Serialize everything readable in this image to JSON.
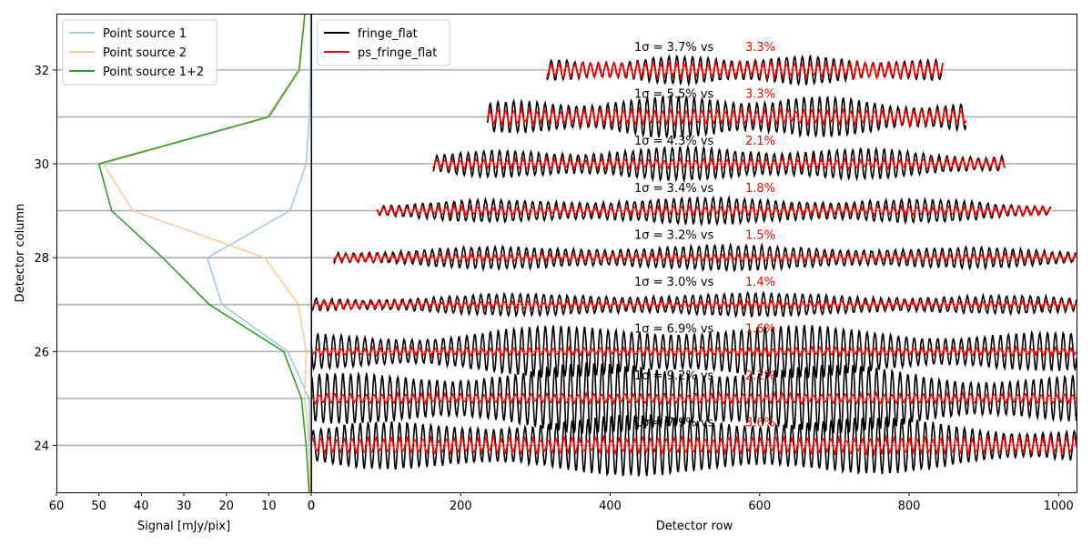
{
  "chart_data": [
    {
      "type": "line",
      "panel": "left",
      "xlabel": "Signal [mJy/pix]",
      "ylabel": "Detector column",
      "xlim": [
        60,
        0
      ],
      "ylim": [
        23,
        33.2
      ],
      "xticks": [
        "60",
        "50",
        "40",
        "30",
        "20",
        "10",
        "0"
      ],
      "yticks": [
        "24",
        "26",
        "28",
        "30",
        "32"
      ],
      "grid": "horizontal lines at integer columns 24–32",
      "legend": "top-left",
      "y": [
        23,
        24,
        25,
        26,
        27,
        28,
        29,
        30,
        31,
        32,
        33.2
      ],
      "series": [
        {
          "name": "Point source 1",
          "color": "#a6c8e5",
          "x": [
            0.3,
            0.3,
            0.5,
            5.5,
            21,
            24.5,
            5,
            1.2,
            0.4,
            0.2,
            0.1
          ]
        },
        {
          "name": "Point source 2",
          "color": "#ffcb99",
          "x": [
            0.3,
            0.5,
            1.5,
            1.2,
            3,
            11,
            42,
            49,
            10.5,
            3,
            1.5
          ]
        },
        {
          "name": "Point source 1+2",
          "color": "#2ca02c",
          "x": [
            0.5,
            1.2,
            2.3,
            6.5,
            24,
            35,
            47,
            50,
            10,
            2.8,
            1.5
          ]
        }
      ]
    },
    {
      "type": "line",
      "panel": "right",
      "xlabel": "Detector row",
      "xlim": [
        0,
        1024
      ],
      "ylim": [
        23,
        33.2
      ],
      "xticks": [
        "0",
        "200",
        "400",
        "600",
        "800",
        "1000"
      ],
      "legend": "top-left",
      "series": [
        {
          "name": "fringe_flat",
          "color": "#000000"
        },
        {
          "name": "ps_fringe_flat",
          "color": "#ff0000"
        }
      ],
      "traces": [
        {
          "column": 24,
          "x_range": [
            0,
            1024
          ],
          "sigma_fringe_flat": "7.9%",
          "sigma_ps_fringe_flat": "3.6%"
        },
        {
          "column": 25,
          "x_range": [
            0,
            1024
          ],
          "sigma_fringe_flat": "9.2%",
          "sigma_ps_fringe_flat": "2.1%"
        },
        {
          "column": 26,
          "x_range": [
            0,
            1024
          ],
          "sigma_fringe_flat": "6.9%",
          "sigma_ps_fringe_flat": "1.6%"
        },
        {
          "column": 27,
          "x_range": [
            0,
            1024
          ],
          "sigma_fringe_flat": "3.0%",
          "sigma_ps_fringe_flat": "1.4%"
        },
        {
          "column": 28,
          "x_range": [
            30,
            1024
          ],
          "sigma_fringe_flat": "3.2%",
          "sigma_ps_fringe_flat": "1.5%"
        },
        {
          "column": 29,
          "x_range": [
            88,
            990
          ],
          "sigma_fringe_flat": "3.4%",
          "sigma_ps_fringe_flat": "1.8%"
        },
        {
          "column": 30,
          "x_range": [
            163,
            928
          ],
          "sigma_fringe_flat": "4.3%",
          "sigma_ps_fringe_flat": "2.1%"
        },
        {
          "column": 31,
          "x_range": [
            236,
            876
          ],
          "sigma_fringe_flat": "5.5%",
          "sigma_ps_fringe_flat": "3.3%"
        },
        {
          "column": 32,
          "x_range": [
            315,
            845
          ],
          "sigma_fringe_flat": "3.7%",
          "sigma_ps_fringe_flat": "3.3%"
        }
      ],
      "annotation_template": {
        "prefix": "1σ = ",
        "sep": "vs"
      }
    }
  ]
}
